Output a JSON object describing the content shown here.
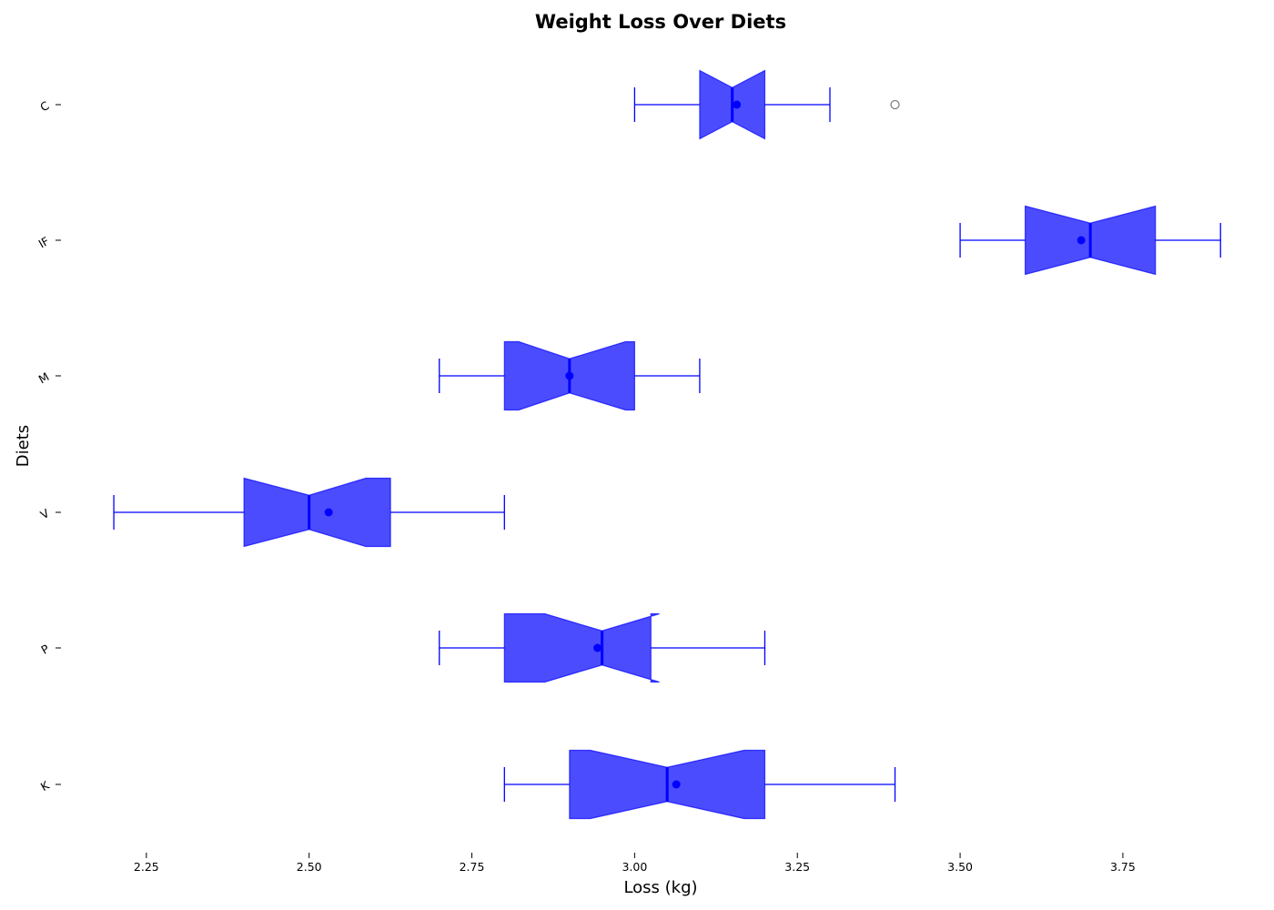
{
  "chart_data": {
    "type": "boxplot",
    "title": "Weight Loss Over Diets",
    "xlabel": "Loss (kg)",
    "ylabel": "Diets",
    "xlim": [
      2.13,
      3.95
    ],
    "xticks": [
      "2.25",
      "2.50",
      "2.75",
      "3.00",
      "3.25",
      "3.50",
      "3.75"
    ],
    "notched": true,
    "orientation": "horizontal",
    "box_color": "#0000ff",
    "box_fill_opacity": 0.7,
    "flier_color": "#808080",
    "grid": false,
    "categories": [
      "C",
      "IF",
      "M",
      "V",
      "P",
      "K"
    ],
    "boxes": [
      {
        "label": "C",
        "whislo": 3.0,
        "q1": 3.1,
        "med": 3.15,
        "q3": 3.2,
        "whishi": 3.3,
        "notch_lo": 3.1,
        "notch_hi": 3.2,
        "mean": 3.157,
        "fliers": [
          3.4
        ]
      },
      {
        "label": "IF",
        "whislo": 3.5,
        "q1": 3.6,
        "med": 3.7,
        "q3": 3.8,
        "whishi": 3.9,
        "notch_lo": 3.6,
        "notch_hi": 3.8,
        "mean": 3.686,
        "fliers": []
      },
      {
        "label": "M",
        "whislo": 2.7,
        "q1": 2.8,
        "med": 2.9,
        "q3": 3.0,
        "whishi": 3.1,
        "notch_lo": 2.822,
        "notch_hi": 2.986,
        "mean": 2.9,
        "fliers": []
      },
      {
        "label": "V",
        "whislo": 2.2,
        "q1": 2.4,
        "med": 2.5,
        "q3": 2.625,
        "whishi": 2.8,
        "notch_lo": 2.4,
        "notch_hi": 2.587,
        "mean": 2.53,
        "fliers": []
      },
      {
        "label": "P",
        "whislo": 2.7,
        "q1": 2.8,
        "med": 2.95,
        "q3": 3.025,
        "whishi": 3.2,
        "notch_lo": 2.862,
        "notch_hi": 3.038,
        "mean": 2.943,
        "fliers": []
      },
      {
        "label": "K",
        "whislo": 2.8,
        "q1": 2.9,
        "med": 3.05,
        "q3": 3.2,
        "whishi": 3.4,
        "notch_lo": 2.932,
        "notch_hi": 3.168,
        "mean": 3.064,
        "fliers": []
      }
    ]
  }
}
